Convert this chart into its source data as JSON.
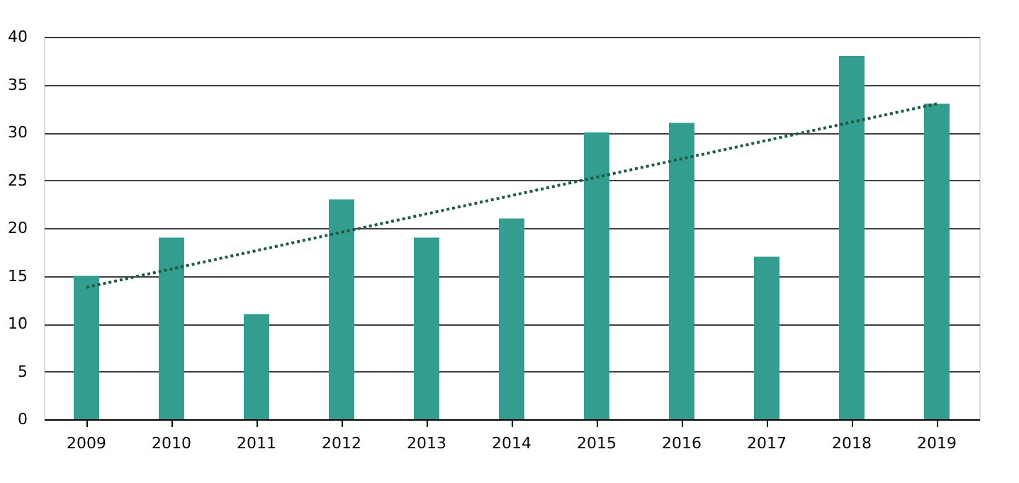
{
  "chart_data": {
    "type": "bar",
    "categories": [
      "2009",
      "2010",
      "2011",
      "2012",
      "2013",
      "2014",
      "2015",
      "2016",
      "2017",
      "2018",
      "2019"
    ],
    "series": [
      {
        "type": "bar",
        "color": "#339e8f",
        "values": [
          15,
          19,
          11,
          23,
          19,
          21,
          30,
          31,
          17,
          38,
          33
        ]
      },
      {
        "type": "line",
        "color": "#1f5a45",
        "line_style": "dotted",
        "values": [
          13.8,
          null,
          null,
          null,
          null,
          null,
          null,
          null,
          null,
          null,
          33.0
        ]
      }
    ],
    "ylim": [
      0,
      40
    ],
    "yticks": [
      0,
      5,
      10,
      15,
      20,
      25,
      30,
      35,
      40
    ],
    "grid": "y"
  }
}
